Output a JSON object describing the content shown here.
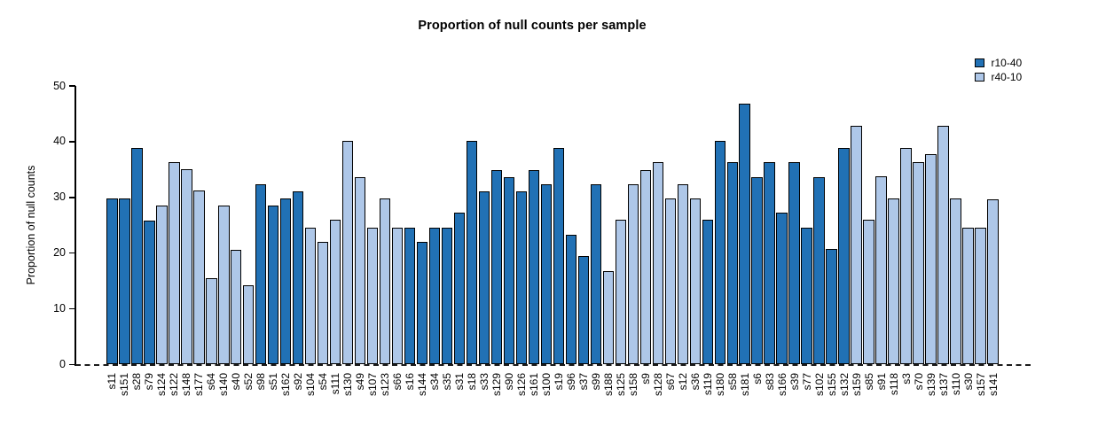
{
  "chart_data": {
    "type": "bar",
    "title": "Proportion of null counts per sample",
    "xlabel": "",
    "ylabel": "Proportion of null counts",
    "ylim": [
      0,
      50
    ],
    "yticks": [
      0,
      10,
      20,
      30,
      40,
      50
    ],
    "grid": false,
    "legend_position": "top-right",
    "x_tick_rotation": 90,
    "baseline_style": "dashed",
    "legend": [
      {
        "label": "r10-40",
        "color": "#2171B5"
      },
      {
        "label": "r40-10",
        "color": "#AEC7E8"
      }
    ],
    "bars": [
      {
        "name": "s11",
        "value": 29.8,
        "series": "r10-40"
      },
      {
        "name": "s151",
        "value": 29.8,
        "series": "r10-40"
      },
      {
        "name": "s28",
        "value": 38.9,
        "series": "r10-40"
      },
      {
        "name": "s79",
        "value": 25.9,
        "series": "r10-40"
      },
      {
        "name": "s124",
        "value": 28.5,
        "series": "r40-10"
      },
      {
        "name": "s122",
        "value": 36.4,
        "series": "r40-10"
      },
      {
        "name": "s148",
        "value": 35.0,
        "series": "r40-10"
      },
      {
        "name": "s177",
        "value": 31.2,
        "series": "r40-10"
      },
      {
        "name": "s64",
        "value": 15.5,
        "series": "r40-10"
      },
      {
        "name": "s140",
        "value": 28.5,
        "series": "r40-10"
      },
      {
        "name": "s40",
        "value": 20.6,
        "series": "r40-10"
      },
      {
        "name": "s52",
        "value": 14.2,
        "series": "r40-10"
      },
      {
        "name": "s98",
        "value": 32.4,
        "series": "r10-40"
      },
      {
        "name": "s51",
        "value": 28.5,
        "series": "r10-40"
      },
      {
        "name": "s162",
        "value": 29.8,
        "series": "r10-40"
      },
      {
        "name": "s92",
        "value": 31.1,
        "series": "r10-40"
      },
      {
        "name": "s104",
        "value": 24.5,
        "series": "r40-10"
      },
      {
        "name": "s54",
        "value": 22.0,
        "series": "r40-10"
      },
      {
        "name": "s111",
        "value": 26.0,
        "series": "r40-10"
      },
      {
        "name": "s130",
        "value": 40.2,
        "series": "r40-10"
      },
      {
        "name": "s49",
        "value": 33.7,
        "series": "r40-10"
      },
      {
        "name": "s107",
        "value": 24.5,
        "series": "r40-10"
      },
      {
        "name": "s123",
        "value": 29.8,
        "series": "r40-10"
      },
      {
        "name": "s66",
        "value": 24.5,
        "series": "r40-10"
      },
      {
        "name": "s16",
        "value": 24.5,
        "series": "r10-40"
      },
      {
        "name": "s144",
        "value": 22.0,
        "series": "r10-40"
      },
      {
        "name": "s34",
        "value": 24.5,
        "series": "r10-40"
      },
      {
        "name": "s35",
        "value": 24.5,
        "series": "r10-40"
      },
      {
        "name": "s31",
        "value": 27.3,
        "series": "r10-40"
      },
      {
        "name": "s18",
        "value": 40.2,
        "series": "r10-40"
      },
      {
        "name": "s33",
        "value": 31.1,
        "series": "r10-40"
      },
      {
        "name": "s129",
        "value": 34.9,
        "series": "r10-40"
      },
      {
        "name": "s90",
        "value": 33.7,
        "series": "r10-40"
      },
      {
        "name": "s126",
        "value": 31.1,
        "series": "r10-40"
      },
      {
        "name": "s161",
        "value": 34.9,
        "series": "r10-40"
      },
      {
        "name": "s100",
        "value": 32.4,
        "series": "r10-40"
      },
      {
        "name": "s19",
        "value": 38.8,
        "series": "r10-40"
      },
      {
        "name": "s96",
        "value": 23.3,
        "series": "r10-40"
      },
      {
        "name": "s37",
        "value": 19.5,
        "series": "r10-40"
      },
      {
        "name": "s99",
        "value": 32.4,
        "series": "r10-40"
      },
      {
        "name": "s188",
        "value": 16.8,
        "series": "r40-10"
      },
      {
        "name": "s125",
        "value": 26.0,
        "series": "r40-10"
      },
      {
        "name": "s158",
        "value": 32.4,
        "series": "r40-10"
      },
      {
        "name": "s9",
        "value": 34.9,
        "series": "r40-10"
      },
      {
        "name": "s128",
        "value": 36.4,
        "series": "r40-10"
      },
      {
        "name": "s67",
        "value": 29.8,
        "series": "r40-10"
      },
      {
        "name": "s12",
        "value": 32.4,
        "series": "r40-10"
      },
      {
        "name": "s36",
        "value": 29.8,
        "series": "r40-10"
      },
      {
        "name": "s119",
        "value": 26.0,
        "series": "r10-40"
      },
      {
        "name": "s180",
        "value": 40.2,
        "series": "r10-40"
      },
      {
        "name": "s58",
        "value": 36.4,
        "series": "r10-40"
      },
      {
        "name": "s181",
        "value": 46.8,
        "series": "r10-40"
      },
      {
        "name": "s6",
        "value": 33.7,
        "series": "r10-40"
      },
      {
        "name": "s83",
        "value": 36.4,
        "series": "r10-40"
      },
      {
        "name": "s166",
        "value": 27.3,
        "series": "r10-40"
      },
      {
        "name": "s39",
        "value": 36.4,
        "series": "r10-40"
      },
      {
        "name": "s77",
        "value": 24.5,
        "series": "r10-40"
      },
      {
        "name": "s102",
        "value": 33.7,
        "series": "r10-40"
      },
      {
        "name": "s155",
        "value": 20.7,
        "series": "r10-40"
      },
      {
        "name": "s132",
        "value": 38.9,
        "series": "r10-40"
      },
      {
        "name": "s159",
        "value": 42.8,
        "series": "r40-10"
      },
      {
        "name": "s85",
        "value": 26.0,
        "series": "r40-10"
      },
      {
        "name": "s91",
        "value": 33.8,
        "series": "r40-10"
      },
      {
        "name": "s118",
        "value": 29.8,
        "series": "r40-10"
      },
      {
        "name": "s3",
        "value": 38.9,
        "series": "r40-10"
      },
      {
        "name": "s70",
        "value": 36.4,
        "series": "r40-10"
      },
      {
        "name": "s139",
        "value": 37.7,
        "series": "r40-10"
      },
      {
        "name": "s137",
        "value": 42.8,
        "series": "r40-10"
      },
      {
        "name": "s110",
        "value": 29.8,
        "series": "r40-10"
      },
      {
        "name": "s30",
        "value": 24.5,
        "series": "r40-10"
      },
      {
        "name": "s157",
        "value": 24.5,
        "series": "r40-10"
      },
      {
        "name": "s141",
        "value": 29.7,
        "series": "r40-10"
      }
    ]
  }
}
